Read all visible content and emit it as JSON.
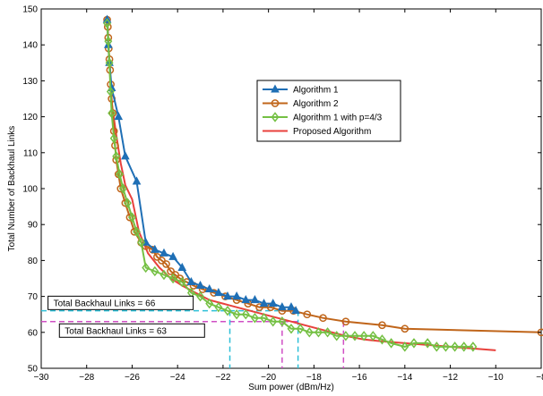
{
  "chart_data": {
    "type": "line",
    "xlabel": "Sum power (dBm/Hz)",
    "ylabel": "Total Number of Backhaul Links",
    "xlim": [
      -30,
      -8
    ],
    "ylim": [
      50,
      150
    ],
    "xticks": [
      -30,
      -28,
      -26,
      -24,
      -22,
      -20,
      -18,
      -16,
      -14,
      -12,
      -10,
      -8
    ],
    "yticks": [
      50,
      60,
      70,
      80,
      90,
      100,
      110,
      120,
      130,
      140,
      150
    ],
    "xtick_labels": [
      "−30",
      "−28",
      "−26",
      "−24",
      "−22",
      "−20",
      "−18",
      "−16",
      "−14",
      "−12",
      "−10",
      "−8"
    ],
    "ytick_labels": [
      "50",
      "60",
      "70",
      "80",
      "90",
      "100",
      "110",
      "120",
      "130",
      "140",
      "150"
    ],
    "grid": false,
    "legend_position": "upper-center-right",
    "series": [
      {
        "name": "Algorithm 1",
        "color": "#1f6fb5",
        "marker": "triangle",
        "points": [
          [
            -27.1,
            147
          ],
          [
            -27.05,
            140
          ],
          [
            -27.0,
            135
          ],
          [
            -26.9,
            128
          ],
          [
            -26.6,
            120
          ],
          [
            -26.3,
            109
          ],
          [
            -25.8,
            102
          ],
          [
            -25.4,
            85
          ],
          [
            -25.0,
            83
          ],
          [
            -24.6,
            82
          ],
          [
            -24.2,
            81
          ],
          [
            -23.8,
            78
          ],
          [
            -23.4,
            74
          ],
          [
            -23.0,
            73
          ],
          [
            -22.6,
            72
          ],
          [
            -22.2,
            71
          ],
          [
            -21.8,
            70
          ],
          [
            -21.4,
            70
          ],
          [
            -21.0,
            69
          ],
          [
            -20.6,
            69
          ],
          [
            -20.2,
            68
          ],
          [
            -19.8,
            68
          ],
          [
            -19.4,
            67
          ],
          [
            -19.0,
            67
          ],
          [
            -18.8,
            66
          ]
        ]
      },
      {
        "name": "Algorithm 2",
        "color": "#c0651a",
        "marker": "circle",
        "points": [
          [
            -27.1,
            147
          ],
          [
            -27.07,
            145
          ],
          [
            -27.05,
            142
          ],
          [
            -27.03,
            139
          ],
          [
            -27.0,
            136
          ],
          [
            -26.97,
            133
          ],
          [
            -26.94,
            129
          ],
          [
            -26.9,
            125
          ],
          [
            -26.85,
            121
          ],
          [
            -26.8,
            116
          ],
          [
            -26.75,
            112
          ],
          [
            -26.7,
            108
          ],
          [
            -26.6,
            104
          ],
          [
            -26.5,
            100
          ],
          [
            -26.3,
            96
          ],
          [
            -26.1,
            92
          ],
          [
            -25.9,
            88
          ],
          [
            -25.6,
            85
          ],
          [
            -25.4,
            84
          ],
          [
            -25.1,
            83
          ],
          [
            -24.9,
            81
          ],
          [
            -24.7,
            80
          ],
          [
            -24.5,
            79
          ],
          [
            -24.3,
            77
          ],
          [
            -24.1,
            76
          ],
          [
            -23.9,
            75
          ],
          [
            -23.6,
            74
          ],
          [
            -23.3,
            73
          ],
          [
            -22.9,
            72
          ],
          [
            -22.4,
            71
          ],
          [
            -21.9,
            70
          ],
          [
            -21.4,
            69
          ],
          [
            -20.9,
            68
          ],
          [
            -20.4,
            67
          ],
          [
            -19.9,
            67
          ],
          [
            -19.4,
            66
          ],
          [
            -18.9,
            66
          ],
          [
            -18.3,
            65
          ],
          [
            -17.6,
            64
          ],
          [
            -16.6,
            63
          ],
          [
            -15.0,
            62
          ],
          [
            -14.0,
            61
          ],
          [
            -8.0,
            60
          ]
        ]
      },
      {
        "name": "Algorithm 1 with p=4/3",
        "color": "#74c043",
        "marker": "diamond",
        "points": [
          [
            -27.1,
            146
          ],
          [
            -27.05,
            141
          ],
          [
            -27.0,
            135
          ],
          [
            -26.95,
            127
          ],
          [
            -26.9,
            121
          ],
          [
            -26.8,
            114
          ],
          [
            -26.7,
            109
          ],
          [
            -26.55,
            104
          ],
          [
            -26.4,
            100
          ],
          [
            -26.2,
            96
          ],
          [
            -26.0,
            92
          ],
          [
            -25.8,
            88
          ],
          [
            -25.6,
            85
          ],
          [
            -25.4,
            78
          ],
          [
            -25.0,
            77
          ],
          [
            -24.6,
            76
          ],
          [
            -24.2,
            75
          ],
          [
            -23.8,
            74
          ],
          [
            -23.4,
            71
          ],
          [
            -23.0,
            70
          ],
          [
            -22.6,
            68
          ],
          [
            -22.2,
            67
          ],
          [
            -21.8,
            66
          ],
          [
            -21.4,
            65
          ],
          [
            -21.0,
            65
          ],
          [
            -20.6,
            64
          ],
          [
            -20.2,
            64
          ],
          [
            -19.8,
            63
          ],
          [
            -19.4,
            63
          ],
          [
            -19.0,
            61
          ],
          [
            -18.6,
            61
          ],
          [
            -18.2,
            60
          ],
          [
            -17.8,
            60
          ],
          [
            -17.4,
            60
          ],
          [
            -17.0,
            59
          ],
          [
            -16.6,
            59
          ],
          [
            -16.2,
            59
          ],
          [
            -15.8,
            59
          ],
          [
            -15.4,
            59
          ],
          [
            -15.0,
            58
          ],
          [
            -14.6,
            57
          ],
          [
            -14.0,
            56
          ],
          [
            -13.6,
            57
          ],
          [
            -13.0,
            57
          ],
          [
            -12.6,
            56
          ],
          [
            -12.2,
            56
          ],
          [
            -11.8,
            56
          ],
          [
            -11.4,
            56
          ],
          [
            -11.0,
            56
          ]
        ]
      },
      {
        "name": "Proposed Algorithm",
        "color": "#e8413c",
        "marker": "none",
        "points": [
          [
            -27.1,
            147
          ],
          [
            -27.0,
            135
          ],
          [
            -26.9,
            124
          ],
          [
            -26.7,
            115
          ],
          [
            -26.5,
            107
          ],
          [
            -26.3,
            101
          ],
          [
            -26.0,
            97
          ],
          [
            -25.7,
            88
          ],
          [
            -25.3,
            82
          ],
          [
            -24.8,
            78
          ],
          [
            -24.3,
            75
          ],
          [
            -23.8,
            73
          ],
          [
            -23.2,
            71
          ],
          [
            -22.6,
            69
          ],
          [
            -22.0,
            68
          ],
          [
            -21.4,
            67
          ],
          [
            -20.8,
            66
          ],
          [
            -20.2,
            65
          ],
          [
            -19.6,
            64
          ],
          [
            -19.0,
            63
          ],
          [
            -18.4,
            62
          ],
          [
            -17.8,
            61
          ],
          [
            -17.2,
            60
          ],
          [
            -16.6,
            59
          ],
          [
            -15.8,
            58
          ],
          [
            -15.0,
            57.5
          ],
          [
            -14.0,
            57
          ],
          [
            -13.0,
            56.5
          ],
          [
            -12.0,
            56
          ],
          [
            -11.0,
            55.5
          ],
          [
            -10.0,
            55
          ]
        ]
      }
    ],
    "reference_lines": [
      {
        "kind": "horizontal",
        "y": 66,
        "color": "#2fc0d8"
      },
      {
        "kind": "horizontal",
        "y": 63,
        "color": "#d04fc4"
      },
      {
        "kind": "vertical",
        "x": -21.7,
        "y_top": 66,
        "color": "#2fc0d8"
      },
      {
        "kind": "vertical",
        "x": -18.7,
        "y_top": 66,
        "color": "#2fc0d8"
      },
      {
        "kind": "vertical",
        "x": -19.4,
        "y_top": 63,
        "color": "#d04fc4"
      },
      {
        "kind": "vertical",
        "x": -16.7,
        "y_top": 63,
        "color": "#d04fc4"
      }
    ],
    "annotations": [
      {
        "text": "Total Backhaul Links = 66",
        "x": -29.7,
        "y": 68.2
      },
      {
        "text": "Total Backhaul Links = 63",
        "x": -29.2,
        "y": 60.5
      }
    ]
  }
}
